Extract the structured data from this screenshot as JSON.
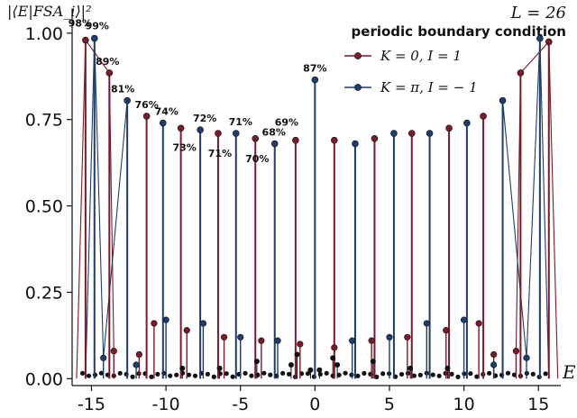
{
  "chart_data": {
    "type": "scatter",
    "title": "periodic boundary condition",
    "size_label": "L = 26",
    "ylabel": "|⟨E|FSA_i⟩|²",
    "xlabel": "E",
    "xlim": [
      -16.3,
      16.5
    ],
    "ylim": [
      -0.02,
      1.07
    ],
    "xticks": [
      -15,
      -10,
      -5,
      0,
      5,
      10,
      15
    ],
    "xtick_labels": [
      "-15",
      "-10",
      "-5",
      "0",
      "5",
      "10",
      "15"
    ],
    "yticks": [
      0.0,
      0.25,
      0.5,
      0.75,
      1.0
    ],
    "ytick_labels": [
      "0.00",
      "0.25",
      "0.50",
      "0.75",
      "1.00"
    ],
    "legend_position": "top-right",
    "colors": {
      "red": "#7a1a2a",
      "blue": "#1d3d6d",
      "bulk": "#111111"
    },
    "series": [
      {
        "name": "K = 0, I = 1",
        "color": "#7a1a2a",
        "tower": [
          {
            "x": -15.4,
            "y": 0.98
          },
          {
            "x": -13.8,
            "y": 0.885
          },
          {
            "x": -11.3,
            "y": 0.76
          },
          {
            "x": -9.0,
            "y": 0.725
          },
          {
            "x": -6.5,
            "y": 0.71
          },
          {
            "x": -4.0,
            "y": 0.695
          },
          {
            "x": -1.3,
            "y": 0.69
          },
          {
            "x": 1.3,
            "y": 0.69
          },
          {
            "x": 4.0,
            "y": 0.695
          },
          {
            "x": 6.5,
            "y": 0.71
          },
          {
            "x": 9.0,
            "y": 0.725
          },
          {
            "x": 11.3,
            "y": 0.76
          },
          {
            "x": 13.8,
            "y": 0.885
          },
          {
            "x": 15.7,
            "y": 0.975
          }
        ],
        "secondary": [
          {
            "x": -13.5,
            "y": 0.08
          },
          {
            "x": -11.8,
            "y": 0.07
          },
          {
            "x": -10.8,
            "y": 0.16
          },
          {
            "x": -8.6,
            "y": 0.14
          },
          {
            "x": -6.1,
            "y": 0.12
          },
          {
            "x": -3.6,
            "y": 0.11
          },
          {
            "x": -1.0,
            "y": 0.1
          },
          {
            "x": 1.3,
            "y": 0.09
          },
          {
            "x": 3.8,
            "y": 0.11
          },
          {
            "x": 6.2,
            "y": 0.12
          },
          {
            "x": 8.8,
            "y": 0.14
          },
          {
            "x": 11.0,
            "y": 0.16
          },
          {
            "x": 12.0,
            "y": 0.07
          },
          {
            "x": 13.5,
            "y": 0.08
          }
        ]
      },
      {
        "name": "K = π, I = − 1",
        "color": "#1d3d6d",
        "tower": [
          {
            "x": -14.8,
            "y": 0.985
          },
          {
            "x": -12.6,
            "y": 0.805
          },
          {
            "x": -10.2,
            "y": 0.74
          },
          {
            "x": -7.7,
            "y": 0.72
          },
          {
            "x": -5.3,
            "y": 0.71
          },
          {
            "x": -2.7,
            "y": 0.68
          },
          {
            "x": 0.0,
            "y": 0.865
          },
          {
            "x": 2.7,
            "y": 0.68
          },
          {
            "x": 5.3,
            "y": 0.71
          },
          {
            "x": 7.7,
            "y": 0.71
          },
          {
            "x": 10.2,
            "y": 0.74
          },
          {
            "x": 12.6,
            "y": 0.805
          },
          {
            "x": 15.1,
            "y": 0.985
          }
        ],
        "secondary": [
          {
            "x": -14.2,
            "y": 0.06
          },
          {
            "x": -12.0,
            "y": 0.04
          },
          {
            "x": -10.0,
            "y": 0.17
          },
          {
            "x": -7.5,
            "y": 0.16
          },
          {
            "x": -5.0,
            "y": 0.12
          },
          {
            "x": -2.5,
            "y": 0.11
          },
          {
            "x": 2.5,
            "y": 0.11
          },
          {
            "x": 5.0,
            "y": 0.12
          },
          {
            "x": 7.5,
            "y": 0.16
          },
          {
            "x": 10.0,
            "y": 0.17
          },
          {
            "x": 12.0,
            "y": 0.04
          },
          {
            "x": 14.2,
            "y": 0.06
          }
        ]
      }
    ],
    "bulk_points": [
      {
        "x": -1.2,
        "y": 0.07
      },
      {
        "x": -1.6,
        "y": 0.04
      },
      {
        "x": 1.2,
        "y": 0.06
      },
      {
        "x": 1.5,
        "y": 0.04
      },
      {
        "x": -3.9,
        "y": 0.05
      },
      {
        "x": 3.9,
        "y": 0.05
      },
      {
        "x": 6.4,
        "y": 0.03
      },
      {
        "x": -6.4,
        "y": 0.03
      },
      {
        "x": 8.9,
        "y": 0.03
      },
      {
        "x": -8.9,
        "y": 0.03
      },
      {
        "x": -0.3,
        "y": 0.025
      },
      {
        "x": 0.3,
        "y": 0.025
      }
    ],
    "annotations": [
      {
        "text": "98%",
        "x": -15.4,
        "y": 0.98,
        "dx": -6,
        "dy": -15
      },
      {
        "text": "99%",
        "x": -14.8,
        "y": 0.985,
        "dx": 3,
        "dy": -10
      },
      {
        "text": "89%",
        "x": -13.8,
        "y": 0.885,
        "dx": -2,
        "dy": -9
      },
      {
        "text": "81%",
        "x": -12.6,
        "y": 0.805,
        "dx": -5,
        "dy": -9
      },
      {
        "text": "76%",
        "x": -11.3,
        "y": 0.76,
        "dx": 0,
        "dy": -9
      },
      {
        "text": "74%",
        "x": -10.2,
        "y": 0.74,
        "dx": 4,
        "dy": -9
      },
      {
        "text": "73%",
        "x": -9.0,
        "y": 0.725,
        "dx": 4,
        "dy": 25
      },
      {
        "text": "72%",
        "x": -7.7,
        "y": 0.72,
        "dx": 5,
        "dy": -9
      },
      {
        "text": "71%",
        "x": -6.5,
        "y": 0.71,
        "dx": 2,
        "dy": 26
      },
      {
        "text": "71%",
        "x": -5.3,
        "y": 0.71,
        "dx": 5,
        "dy": -9
      },
      {
        "text": "70%",
        "x": -4.0,
        "y": 0.695,
        "dx": 2,
        "dy": 26
      },
      {
        "text": "68%",
        "x": -2.7,
        "y": 0.68,
        "dx": -1,
        "dy": -9
      },
      {
        "text": "69%",
        "x": -1.3,
        "y": 0.69,
        "dx": -10,
        "dy": -16
      },
      {
        "text": "87%",
        "x": 0.0,
        "y": 0.865,
        "dx": 0,
        "dy": -9
      }
    ]
  }
}
